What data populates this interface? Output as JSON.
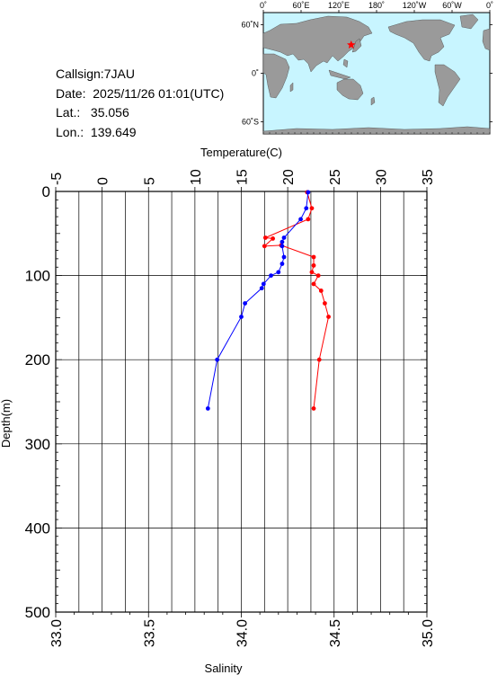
{
  "info": {
    "callsign": "Callsign:7JAU",
    "date": "Date:  2025/11/26 01:01(UTC)",
    "lat": "Lat.:   35.056",
    "lon": "Lon.:  139.649"
  },
  "map": {
    "top_ticks": [
      "0˚",
      "60˚E",
      "120˚E",
      "180˚",
      "120˚W",
      "60˚W",
      "0˚"
    ],
    "lat_ticks": [
      "60˚N",
      "0˚",
      "60˚S"
    ],
    "ocean_color": "#c8f5ff",
    "land_color": "#9a9a9a",
    "marker_color": "#ff0000",
    "marker": {
      "lat": 35.056,
      "lon": 139.649
    }
  },
  "chart_data": {
    "type": "line",
    "ylabel": "Depth(m)",
    "ylim": [
      0,
      500
    ],
    "y_ticks": [
      "0",
      "100",
      "200",
      "300",
      "400",
      "500"
    ],
    "grid": true,
    "temperature_axis": {
      "label": "Temperature(C)",
      "range": [
        -5,
        35
      ],
      "ticks": [
        "-5",
        "0",
        "5",
        "10",
        "15",
        "20",
        "25",
        "30",
        "35"
      ]
    },
    "salinity_axis": {
      "label": "Salinity",
      "range": [
        33.0,
        35.0
      ],
      "ticks": [
        "33.0",
        "33.5",
        "34.0",
        "34.5",
        "35.0"
      ]
    },
    "series": [
      {
        "axis": "temperature",
        "color": "#ff0000",
        "points": [
          [
            22.1,
            1
          ],
          [
            22.6,
            20
          ],
          [
            22.2,
            33
          ],
          [
            17.6,
            55
          ],
          [
            18.4,
            56
          ],
          [
            17.5,
            65
          ],
          [
            19.3,
            64
          ],
          [
            22.8,
            78
          ],
          [
            22.8,
            88
          ],
          [
            22.6,
            96
          ],
          [
            23.3,
            100
          ],
          [
            22.8,
            110
          ],
          [
            23.6,
            118
          ],
          [
            24.0,
            133
          ],
          [
            24.4,
            149
          ],
          [
            23.4,
            200
          ],
          [
            22.8,
            258
          ]
        ]
      },
      {
        "axis": "salinity",
        "color": "#0000ff",
        "points": [
          [
            34.36,
            1
          ],
          [
            34.35,
            20
          ],
          [
            34.32,
            33
          ],
          [
            34.23,
            55
          ],
          [
            34.22,
            60
          ],
          [
            34.22,
            65
          ],
          [
            34.23,
            78
          ],
          [
            34.22,
            86
          ],
          [
            34.2,
            96
          ],
          [
            34.16,
            100
          ],
          [
            34.12,
            110
          ],
          [
            34.11,
            115
          ],
          [
            34.02,
            133
          ],
          [
            34.0,
            149
          ],
          [
            33.87,
            200
          ],
          [
            33.82,
            258
          ]
        ]
      }
    ]
  }
}
